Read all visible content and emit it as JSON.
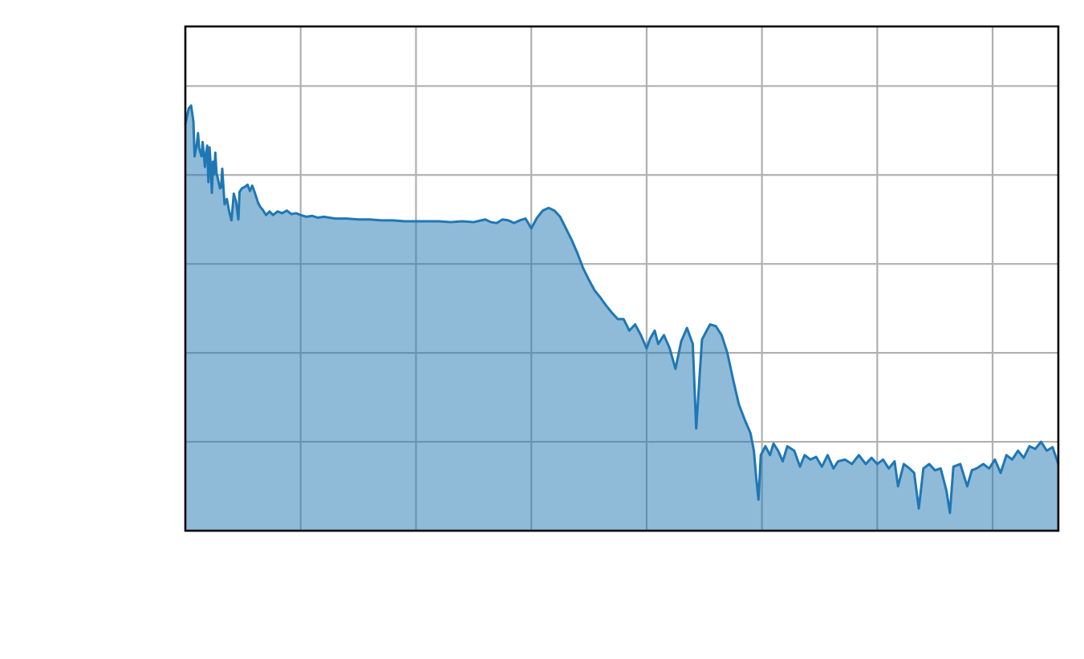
{
  "chart_data": {
    "type": "area",
    "title": "",
    "xlabel": "",
    "ylabel": "",
    "xlim": [
      0,
      7.57
    ],
    "ylim": [
      0,
      5.67
    ],
    "x_gridlines": [
      1,
      2,
      3,
      4,
      5,
      6,
      7
    ],
    "y_gridlines": [
      1,
      2,
      3,
      4,
      5
    ],
    "grid": true,
    "legend": "none",
    "colors": {
      "line": "#1f77b4",
      "fill": "#1f77b4",
      "fill_opacity": 0.5,
      "grid": "#b0b0b0",
      "frame": "#000000"
    },
    "series": [
      {
        "points": [
          [
            0.0,
            4.57
          ],
          [
            0.03,
            4.75
          ],
          [
            0.05,
            4.78
          ],
          [
            0.07,
            4.6
          ],
          [
            0.08,
            4.21
          ],
          [
            0.1,
            4.35
          ],
          [
            0.11,
            4.47
          ],
          [
            0.12,
            4.3
          ],
          [
            0.14,
            4.21
          ],
          [
            0.15,
            4.37
          ],
          [
            0.17,
            4.09
          ],
          [
            0.18,
            4.25
          ],
          [
            0.19,
            4.33
          ],
          [
            0.2,
            3.92
          ],
          [
            0.21,
            4.31
          ],
          [
            0.22,
            4.11
          ],
          [
            0.23,
            3.8
          ],
          [
            0.24,
            4.15
          ],
          [
            0.25,
            4.01
          ],
          [
            0.26,
            4.25
          ],
          [
            0.27,
            4.02
          ],
          [
            0.28,
            3.97
          ],
          [
            0.3,
            3.85
          ],
          [
            0.31,
            3.86
          ],
          [
            0.32,
            4.07
          ],
          [
            0.34,
            3.67
          ],
          [
            0.36,
            3.73
          ],
          [
            0.38,
            3.59
          ],
          [
            0.4,
            3.49
          ],
          [
            0.42,
            3.79
          ],
          [
            0.44,
            3.7
          ],
          [
            0.46,
            3.5
          ],
          [
            0.47,
            3.81
          ],
          [
            0.49,
            3.85
          ],
          [
            0.52,
            3.87
          ],
          [
            0.54,
            3.89
          ],
          [
            0.56,
            3.82
          ],
          [
            0.58,
            3.88
          ],
          [
            0.6,
            3.81
          ],
          [
            0.63,
            3.69
          ],
          [
            0.65,
            3.64
          ],
          [
            0.67,
            3.61
          ],
          [
            0.7,
            3.55
          ],
          [
            0.73,
            3.59
          ],
          [
            0.76,
            3.55
          ],
          [
            0.8,
            3.59
          ],
          [
            0.84,
            3.57
          ],
          [
            0.88,
            3.6
          ],
          [
            0.92,
            3.56
          ],
          [
            0.96,
            3.57
          ],
          [
            1.0,
            3.55
          ],
          [
            1.05,
            3.53
          ],
          [
            1.1,
            3.54
          ],
          [
            1.15,
            3.52
          ],
          [
            1.2,
            3.53
          ],
          [
            1.25,
            3.52
          ],
          [
            1.3,
            3.51
          ],
          [
            1.4,
            3.51
          ],
          [
            1.5,
            3.5
          ],
          [
            1.6,
            3.5
          ],
          [
            1.7,
            3.49
          ],
          [
            1.8,
            3.49
          ],
          [
            1.9,
            3.48
          ],
          [
            2.0,
            3.48
          ],
          [
            2.1,
            3.48
          ],
          [
            2.2,
            3.48
          ],
          [
            2.3,
            3.47
          ],
          [
            2.4,
            3.48
          ],
          [
            2.5,
            3.47
          ],
          [
            2.6,
            3.5
          ],
          [
            2.65,
            3.47
          ],
          [
            2.7,
            3.46
          ],
          [
            2.75,
            3.5
          ],
          [
            2.8,
            3.49
          ],
          [
            2.85,
            3.46
          ],
          [
            2.9,
            3.49
          ],
          [
            2.95,
            3.51
          ],
          [
            3.0,
            3.4
          ],
          [
            3.05,
            3.52
          ],
          [
            3.1,
            3.6
          ],
          [
            3.15,
            3.63
          ],
          [
            3.2,
            3.6
          ],
          [
            3.25,
            3.53
          ],
          [
            3.3,
            3.4
          ],
          [
            3.35,
            3.27
          ],
          [
            3.4,
            3.12
          ],
          [
            3.45,
            2.95
          ],
          [
            3.5,
            2.82
          ],
          [
            3.55,
            2.7
          ],
          [
            3.6,
            2.62
          ],
          [
            3.65,
            2.53
          ],
          [
            3.7,
            2.45
          ],
          [
            3.75,
            2.38
          ],
          [
            3.8,
            2.38
          ],
          [
            3.85,
            2.25
          ],
          [
            3.9,
            2.32
          ],
          [
            3.95,
            2.2
          ],
          [
            4.0,
            2.05
          ],
          [
            4.03,
            2.16
          ],
          [
            4.07,
            2.25
          ],
          [
            4.1,
            2.1
          ],
          [
            4.15,
            2.2
          ],
          [
            4.2,
            2.05
          ],
          [
            4.25,
            1.82
          ],
          [
            4.3,
            2.13
          ],
          [
            4.35,
            2.28
          ],
          [
            4.4,
            2.1
          ],
          [
            4.43,
            1.15
          ],
          [
            4.48,
            2.15
          ],
          [
            4.55,
            2.32
          ],
          [
            4.6,
            2.3
          ],
          [
            4.65,
            2.2
          ],
          [
            4.7,
            2.0
          ],
          [
            4.75,
            1.7
          ],
          [
            4.8,
            1.42
          ],
          [
            4.85,
            1.25
          ],
          [
            4.9,
            1.1
          ],
          [
            4.93,
            0.9
          ],
          [
            4.95,
            0.6
          ],
          [
            4.97,
            0.35
          ],
          [
            4.99,
            0.85
          ],
          [
            5.03,
            0.95
          ],
          [
            5.07,
            0.85
          ],
          [
            5.1,
            0.98
          ],
          [
            5.14,
            0.9
          ],
          [
            5.18,
            0.78
          ],
          [
            5.22,
            0.95
          ],
          [
            5.28,
            0.9
          ],
          [
            5.33,
            0.72
          ],
          [
            5.37,
            0.85
          ],
          [
            5.42,
            0.8
          ],
          [
            5.47,
            0.83
          ],
          [
            5.52,
            0.72
          ],
          [
            5.57,
            0.85
          ],
          [
            5.62,
            0.7
          ],
          [
            5.66,
            0.78
          ],
          [
            5.72,
            0.8
          ],
          [
            5.78,
            0.75
          ],
          [
            5.84,
            0.85
          ],
          [
            5.9,
            0.75
          ],
          [
            5.95,
            0.82
          ],
          [
            6.0,
            0.75
          ],
          [
            6.05,
            0.8
          ],
          [
            6.1,
            0.7
          ],
          [
            6.15,
            0.78
          ],
          [
            6.18,
            0.5
          ],
          [
            6.23,
            0.75
          ],
          [
            6.28,
            0.7
          ],
          [
            6.32,
            0.65
          ],
          [
            6.36,
            0.25
          ],
          [
            6.4,
            0.7
          ],
          [
            6.45,
            0.75
          ],
          [
            6.5,
            0.68
          ],
          [
            6.55,
            0.7
          ],
          [
            6.6,
            0.45
          ],
          [
            6.63,
            0.2
          ],
          [
            6.66,
            0.72
          ],
          [
            6.72,
            0.75
          ],
          [
            6.78,
            0.5
          ],
          [
            6.82,
            0.68
          ],
          [
            6.86,
            0.7
          ],
          [
            6.92,
            0.75
          ],
          [
            6.97,
            0.7
          ],
          [
            7.02,
            0.8
          ],
          [
            7.07,
            0.65
          ],
          [
            7.12,
            0.85
          ],
          [
            7.17,
            0.8
          ],
          [
            7.22,
            0.9
          ],
          [
            7.27,
            0.82
          ],
          [
            7.32,
            0.95
          ],
          [
            7.37,
            0.92
          ],
          [
            7.42,
            1.0
          ],
          [
            7.47,
            0.9
          ],
          [
            7.52,
            0.94
          ],
          [
            7.57,
            0.75
          ]
        ]
      }
    ]
  }
}
